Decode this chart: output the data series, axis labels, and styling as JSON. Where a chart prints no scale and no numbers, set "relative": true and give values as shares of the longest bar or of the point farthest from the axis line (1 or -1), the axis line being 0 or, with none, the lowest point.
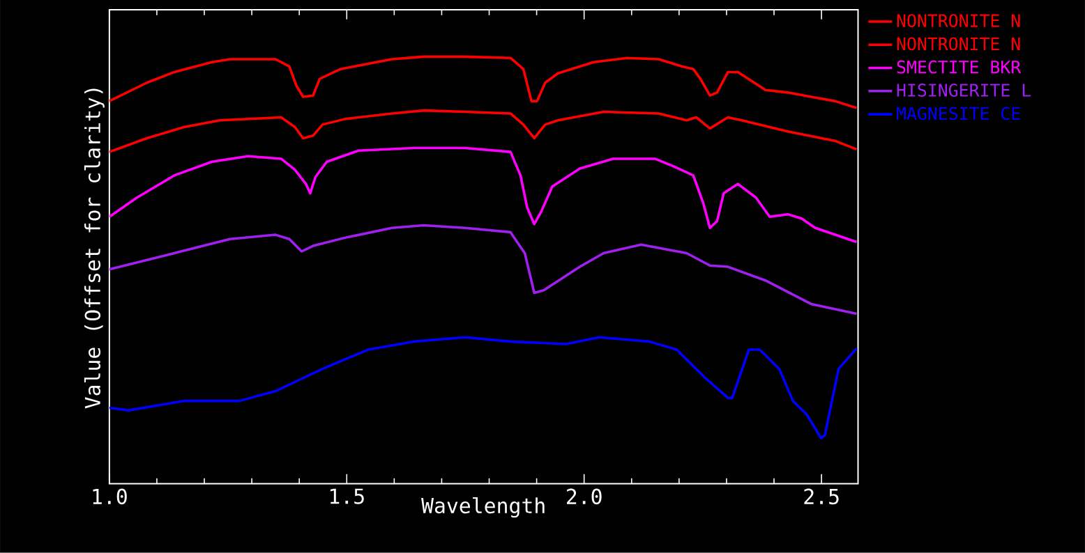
{
  "chart_data": {
    "type": "line",
    "xlabel": "Wavelength",
    "ylabel": "Value (Offset for clarity)",
    "relative": true,
    "xlim": [
      1.0,
      2.577
    ],
    "xticks": [
      {
        "value": 1.0,
        "label": "1.0"
      },
      1.5,
      {
        "value": 2.0,
        "label": "2.0"
      },
      2.5
    ],
    "legend": "top right",
    "grid": false,
    "series": [
      {
        "name": "NONTRONITE N",
        "color": "#ff0000",
        "x": [
          1.0,
          1.079,
          1.137,
          1.216,
          1.254,
          1.35,
          1.379,
          1.394,
          1.408,
          1.429,
          1.443,
          1.487,
          1.595,
          1.662,
          1.749,
          1.845,
          1.872,
          1.889,
          1.901,
          1.918,
          1.945,
          2.02,
          2.09,
          2.157,
          2.207,
          2.23,
          2.245,
          2.265,
          2.28,
          2.303,
          2.324,
          2.382,
          2.429,
          2.478,
          2.528,
          2.574
        ],
        "values": [
          0.896,
          0.939,
          0.964,
          0.987,
          0.994,
          0.994,
          0.977,
          0.932,
          0.906,
          0.909,
          0.948,
          0.971,
          0.994,
          1.0,
          1.0,
          0.997,
          0.971,
          0.896,
          0.896,
          0.939,
          0.961,
          0.987,
          0.997,
          0.994,
          0.977,
          0.971,
          0.948,
          0.909,
          0.916,
          0.964,
          0.964,
          0.922,
          0.916,
          0.906,
          0.896,
          0.88
        ]
      },
      {
        "name": "NONTRONITE N",
        "color": "#ff0000",
        "x": [
          1.0,
          1.079,
          1.157,
          1.233,
          1.362,
          1.391,
          1.408,
          1.429,
          1.449,
          1.496,
          1.595,
          1.662,
          1.749,
          1.845,
          1.872,
          1.895,
          1.918,
          1.945,
          2.041,
          2.157,
          2.216,
          2.236,
          2.265,
          2.303,
          2.332,
          2.429,
          2.528,
          2.574
        ],
        "values": [
          0.777,
          0.809,
          0.835,
          0.851,
          0.858,
          0.835,
          0.809,
          0.815,
          0.841,
          0.854,
          0.867,
          0.874,
          0.871,
          0.867,
          0.841,
          0.809,
          0.841,
          0.851,
          0.871,
          0.867,
          0.851,
          0.858,
          0.832,
          0.858,
          0.851,
          0.825,
          0.803,
          0.783
        ]
      },
      {
        "name": "SMECTITE BKR",
        "color": "#ff00ff",
        "x": [
          1.0,
          1.058,
          1.137,
          1.216,
          1.292,
          1.362,
          1.391,
          1.414,
          1.423,
          1.434,
          1.458,
          1.525,
          1.641,
          1.749,
          1.845,
          1.866,
          1.88,
          1.895,
          1.91,
          1.933,
          1.991,
          2.061,
          2.149,
          2.187,
          2.23,
          2.251,
          2.265,
          2.28,
          2.294,
          2.324,
          2.362,
          2.391,
          2.429,
          2.458,
          2.487,
          2.574
        ],
        "values": [
          0.625,
          0.67,
          0.722,
          0.754,
          0.767,
          0.761,
          0.735,
          0.702,
          0.68,
          0.718,
          0.754,
          0.78,
          0.786,
          0.786,
          0.777,
          0.722,
          0.647,
          0.608,
          0.638,
          0.696,
          0.738,
          0.761,
          0.761,
          0.744,
          0.722,
          0.657,
          0.599,
          0.615,
          0.68,
          0.702,
          0.67,
          0.625,
          0.631,
          0.621,
          0.599,
          0.566
        ]
      },
      {
        "name": "HISINGERITE L",
        "color": "#a020f0",
        "x": [
          1.0,
          1.137,
          1.254,
          1.35,
          1.379,
          1.405,
          1.429,
          1.496,
          1.595,
          1.662,
          1.749,
          1.845,
          1.875,
          1.895,
          1.915,
          1.991,
          2.041,
          2.12,
          2.216,
          2.265,
          2.303,
          2.382,
          2.478,
          2.574
        ],
        "values": [
          0.502,
          0.54,
          0.573,
          0.583,
          0.573,
          0.544,
          0.557,
          0.576,
          0.599,
          0.605,
          0.599,
          0.589,
          0.54,
          0.447,
          0.453,
          0.508,
          0.54,
          0.56,
          0.54,
          0.511,
          0.508,
          0.476,
          0.421,
          0.398
        ]
      },
      {
        "name": "MAGNESITE CE",
        "color": "#0000ff",
        "x": [
          1.0,
          1.041,
          1.157,
          1.274,
          1.35,
          1.449,
          1.545,
          1.641,
          1.749,
          1.845,
          1.962,
          2.032,
          2.137,
          2.195,
          2.254,
          2.303,
          2.312,
          2.347,
          2.37,
          2.411,
          2.44,
          2.469,
          2.499,
          2.507,
          2.536,
          2.574
        ],
        "values": [
          0.178,
          0.172,
          0.194,
          0.194,
          0.217,
          0.269,
          0.314,
          0.333,
          0.343,
          0.333,
          0.327,
          0.343,
          0.333,
          0.314,
          0.249,
          0.201,
          0.201,
          0.314,
          0.314,
          0.269,
          0.194,
          0.162,
          0.107,
          0.113,
          0.269,
          0.317
        ]
      }
    ]
  }
}
